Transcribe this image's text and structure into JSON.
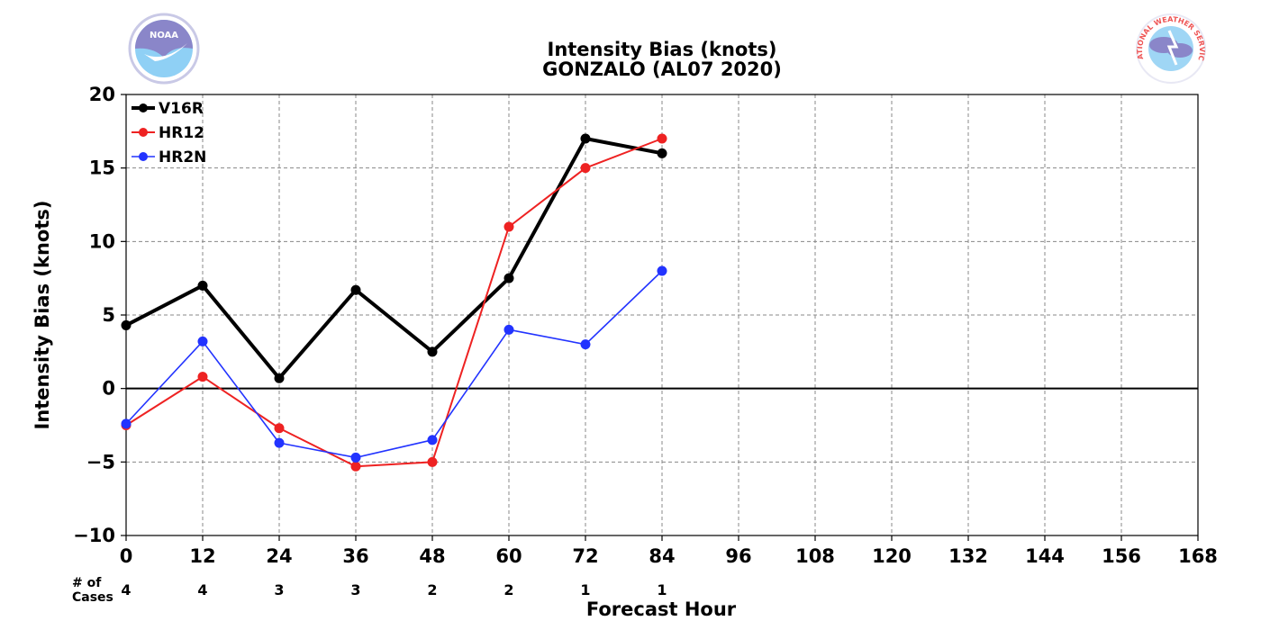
{
  "logos": {
    "left": {
      "name": "NOAA",
      "ring_text": "NATIONAL OCEANIC AND ATMOSPHERIC ADMINISTRATION · U.S. DEPARTMENT OF COMMERCE"
    },
    "right": {
      "name": "NATIONAL WEATHER SERVICE"
    }
  },
  "cases": {
    "label_line1": "# of",
    "label_line2": "Cases",
    "counts": [
      "4",
      "4",
      "3",
      "3",
      "2",
      "2",
      "1",
      "1"
    ]
  },
  "colors": {
    "V16R": "#000000",
    "HR12": "#ee2222",
    "HR2N": "#2233ff",
    "grid": "#888888"
  },
  "chart_data": {
    "type": "line",
    "title": "Intensity Bias (knots)",
    "subtitle": "GONZALO (AL07 2020)",
    "xlabel": "Forecast Hour",
    "ylabel": "Intensity Bias (knots)",
    "xlim": [
      0,
      168
    ],
    "ylim": [
      -10,
      20
    ],
    "xticks": [
      0,
      12,
      24,
      36,
      48,
      60,
      72,
      84,
      96,
      108,
      120,
      132,
      144,
      156,
      168
    ],
    "yticks": [
      -10,
      -5,
      0,
      5,
      10,
      15,
      20
    ],
    "ytick_labels": [
      "−10",
      "−5",
      "0",
      "5",
      "10",
      "15",
      "20"
    ],
    "grid": true,
    "legend_position": "top-left",
    "x": [
      0,
      12,
      24,
      36,
      48,
      60,
      72,
      84
    ],
    "series": [
      {
        "name": "V16R",
        "values": [
          4.3,
          7.0,
          0.7,
          6.7,
          2.5,
          7.5,
          17.0,
          16.0
        ]
      },
      {
        "name": "HR12",
        "values": [
          -2.5,
          0.8,
          -2.7,
          -5.3,
          -5.0,
          11.0,
          15.0,
          17.0
        ]
      },
      {
        "name": "HR2N",
        "values": [
          -2.4,
          3.2,
          -3.7,
          -4.7,
          -3.5,
          4.0,
          3.0,
          8.0
        ]
      }
    ]
  }
}
